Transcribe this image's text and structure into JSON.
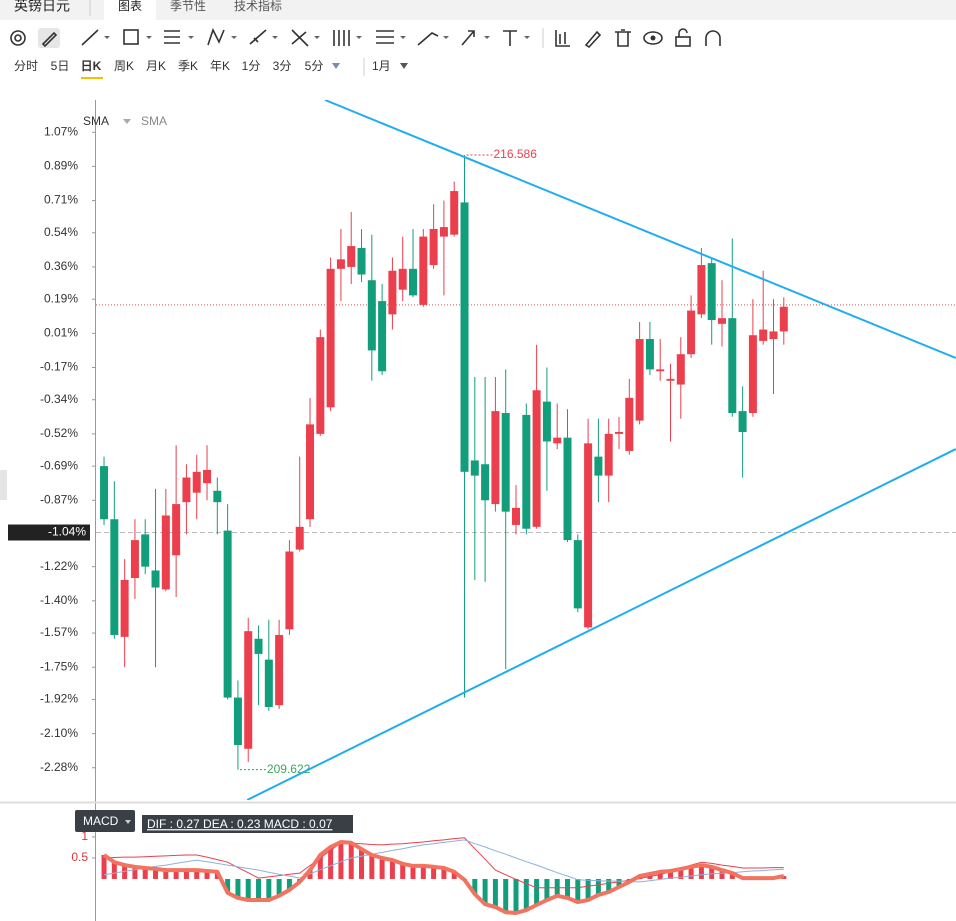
{
  "ui": {
    "symbol": "英镑日元",
    "tabs": [
      "图表",
      "季节性",
      "技术指标"
    ],
    "periods": [
      "分时",
      "5日",
      "日K",
      "周K",
      "月K",
      "季K",
      "年K",
      "1分",
      "3分",
      "5分"
    ],
    "range": "1月",
    "indicators": [
      "SMA",
      "SMA"
    ],
    "macd_button": "MACD",
    "macd_legend": "DIF : 0.27  DEA : 0.23  MACD : 0.07"
  },
  "chart_data": [
    {
      "type": "candlestick",
      "up_color": "#eb3f4d",
      "down_color": "#139e7b",
      "xlim": [
        -0.78,
        82.72
      ],
      "ylim": [
        -2.45,
        1.24
      ],
      "yticks": [
        {
          "value": 1.07,
          "label": "1.07%"
        },
        {
          "value": 0.89,
          "label": "0.89%"
        },
        {
          "value": 0.71,
          "label": "0.71%"
        },
        {
          "value": 0.54,
          "label": "0.54%"
        },
        {
          "value": 0.36,
          "label": "0.36%"
        },
        {
          "value": 0.19,
          "label": "0.19%"
        },
        {
          "value": 0.01,
          "label": "0.01%"
        },
        {
          "value": -0.17,
          "label": "-0.17%"
        },
        {
          "value": -0.34,
          "label": "-0.34%"
        },
        {
          "value": -0.52,
          "label": "-0.52%"
        },
        {
          "value": -0.69,
          "label": "-0.69%"
        },
        {
          "value": -0.87,
          "label": "-0.87%"
        },
        {
          "value": -1.22,
          "label": "-1.22%"
        },
        {
          "value": -1.4,
          "label": "-1.40%"
        },
        {
          "value": -1.57,
          "label": "-1.57%"
        },
        {
          "value": -1.75,
          "label": "-1.75%"
        },
        {
          "value": -1.92,
          "label": "-1.92%"
        },
        {
          "value": -2.1,
          "label": "-2.10%"
        },
        {
          "value": -2.28,
          "label": "-2.28%"
        }
      ],
      "crosshair": {
        "value": -1.04,
        "label": "-1.04%"
      },
      "last_price": 0.16,
      "last_price_color": "#d9534f",
      "high_label": "216.586",
      "low_label": "209.622",
      "trendline_color": "#1fadef",
      "trendlines": [
        [
          [
            21.46,
            1.24
          ],
          [
            82.7,
            -0.12
          ]
        ],
        [
          [
            13.9,
            -2.45
          ],
          [
            82.7,
            -0.6
          ]
        ]
      ],
      "open": [
        -0.69,
        -0.97,
        -1.59,
        -1.28,
        -1.05,
        -1.24,
        -1.34,
        -1.16,
        -0.88,
        -0.83,
        -0.78,
        -0.82,
        -1.03,
        -1.91,
        -2.18,
        -1.6,
        -1.71,
        -1.95,
        -1.55,
        -1.13,
        -0.97,
        -0.52,
        -0.38,
        0.35,
        0.36,
        0.46,
        0.29,
        0.18,
        0.11,
        0.24,
        0.35,
        0.16,
        0.37,
        0.52,
        0.53,
        0.7,
        -0.66,
        -0.68,
        -0.89,
        -0.41,
        -1.0,
        -0.42,
        -1.01,
        -0.35,
        -0.57,
        -0.54,
        -1.08,
        -1.54,
        -0.64,
        -0.74,
        -0.52,
        -0.61,
        -0.45,
        -0.02,
        -0.19,
        -0.24,
        -0.26,
        -0.1,
        0.11,
        0.38,
        0.06,
        0.09,
        -0.4,
        -0.41,
        -0.03,
        -0.02,
        0.02
      ],
      "high": [
        -0.64,
        -0.77,
        -1.18,
        -0.97,
        -0.97,
        -0.81,
        -0.81,
        -0.58,
        -0.68,
        -0.63,
        -0.58,
        -0.75,
        -0.89,
        -1.82,
        -1.49,
        -1.53,
        -1.5,
        -1.5,
        -1.08,
        -0.64,
        -0.33,
        0.03,
        0.41,
        0.56,
        0.65,
        0.56,
        0.53,
        0.27,
        0.41,
        0.52,
        0.56,
        0.56,
        0.69,
        0.71,
        0.81,
        0.95,
        -0.22,
        -0.22,
        -0.22,
        -0.18,
        -0.79,
        -0.36,
        -0.05,
        -0.17,
        -0.36,
        -0.39,
        -1.05,
        -0.44,
        -0.44,
        -0.44,
        -0.43,
        -0.23,
        0.07,
        0.07,
        -0.02,
        -0.15,
        -0.01,
        0.21,
        0.46,
        0.41,
        0.29,
        0.51,
        -0.27,
        0.19,
        0.34,
        0.19,
        0.2
      ],
      "low": [
        -1.0,
        -1.6,
        -1.75,
        -1.39,
        -1.26,
        -1.75,
        -1.35,
        -1.38,
        -1.05,
        -0.97,
        -0.87,
        -1.05,
        -1.92,
        -2.29,
        -2.25,
        -1.95,
        -1.98,
        -1.97,
        -1.58,
        -1.14,
        -1.01,
        -0.53,
        -0.4,
        0.18,
        0.27,
        0.28,
        -0.24,
        -0.21,
        0.03,
        0.18,
        0.2,
        0.15,
        0.35,
        0.21,
        0.52,
        -1.91,
        -1.29,
        -1.3,
        -0.93,
        -1.76,
        -1.05,
        -1.05,
        -1.02,
        -0.82,
        -0.6,
        -1.09,
        -1.46,
        -1.55,
        -0.88,
        -0.88,
        -0.6,
        -0.63,
        -0.47,
        -0.21,
        -0.24,
        -0.56,
        -0.44,
        -0.12,
        0.09,
        -0.05,
        -0.06,
        -0.43,
        -0.75,
        -0.43,
        -0.05,
        -0.31,
        -0.05
      ],
      "close": [
        -0.97,
        -1.58,
        -1.29,
        -1.08,
        -1.22,
        -1.33,
        -0.95,
        -0.89,
        -0.75,
        -0.72,
        -0.71,
        -0.88,
        -1.91,
        -2.16,
        -1.56,
        -1.68,
        -1.96,
        -1.58,
        -1.14,
        -1.01,
        -0.47,
        -0.01,
        0.35,
        0.4,
        0.47,
        0.32,
        -0.08,
        -0.19,
        0.34,
        0.35,
        0.21,
        0.52,
        0.56,
        0.57,
        0.76,
        -0.72,
        -0.74,
        -0.87,
        -0.4,
        -0.93,
        -0.91,
        -1.02,
        -0.29,
        -0.56,
        -0.54,
        -1.08,
        -1.44,
        -0.57,
        -0.74,
        -0.52,
        -0.51,
        -0.33,
        -0.02,
        -0.18,
        -0.18,
        -0.23,
        -0.1,
        0.13,
        0.37,
        0.08,
        0.09,
        -0.41,
        -0.51,
        0.0,
        0.03,
        0.02,
        0.15
      ]
    },
    {
      "type": "macd",
      "xlim": [
        -0.78,
        82.72
      ],
      "ylim": [
        -1.0,
        1.76
      ],
      "yticks": [
        0.5,
        1
      ],
      "up_color": "#eb3f4d",
      "down_color": "#139e7b",
      "emphasis_color": "#f2735f",
      "series": [
        {
          "color": "#e8414f",
          "values": [
            0.5,
            0.51,
            0.52,
            0.52,
            0.53,
            0.54,
            0.55,
            0.56,
            0.57,
            0.57,
            0.52,
            0.46,
            0.4,
            0.27,
            0.15,
            0.02,
            0.05,
            0.08,
            0.11,
            0.14,
            0.32,
            0.5,
            0.68,
            0.86,
            0.85,
            0.84,
            0.82,
            0.81,
            0.83,
            0.84,
            0.86,
            0.88,
            0.91,
            0.93,
            0.96,
            0.98,
            0.72,
            0.47,
            0.21,
            0.1,
            -0.01,
            -0.11,
            -0.21,
            -0.21,
            -0.21,
            -0.21,
            -0.21,
            -0.17,
            -0.14,
            -0.1,
            -0.07,
            -0.03,
            0.01,
            0.06,
            0.1,
            0.18,
            0.25,
            0.33,
            0.4,
            0.37,
            0.33,
            0.3,
            0.26,
            0.26,
            0.26,
            0.27,
            0.27
          ]
        },
        {
          "color": "#8fb2d9",
          "values": [
            0.1,
            0.14,
            0.18,
            0.22,
            0.26,
            0.3,
            0.33,
            0.37,
            0.41,
            0.45,
            0.41,
            0.37,
            0.33,
            0.29,
            0.25,
            0.21,
            0.16,
            0.11,
            0.07,
            0.02,
            0.12,
            0.22,
            0.31,
            0.41,
            0.5,
            0.54,
            0.59,
            0.63,
            0.68,
            0.72,
            0.77,
            0.81,
            0.84,
            0.87,
            0.9,
            0.93,
            0.84,
            0.76,
            0.67,
            0.59,
            0.5,
            0.41,
            0.33,
            0.24,
            0.15,
            0.07,
            -0.02,
            -0.03,
            -0.04,
            -0.05,
            -0.05,
            -0.06,
            -0.07,
            -0.04,
            -0.01,
            0.02,
            0.04,
            0.07,
            0.1,
            0.12,
            0.14,
            0.15,
            0.17,
            0.19,
            0.2,
            0.22,
            0.23
          ]
        },
        {
          "values": [
            0.57,
            0.4,
            0.33,
            0.29,
            0.26,
            0.24,
            0.21,
            0.21,
            0.21,
            0.21,
            0.19,
            0.17,
            -0.33,
            -0.45,
            -0.5,
            -0.5,
            -0.5,
            -0.4,
            -0.26,
            -0.07,
            0.21,
            0.57,
            0.76,
            0.88,
            0.86,
            0.71,
            0.57,
            0.5,
            0.45,
            0.36,
            0.31,
            0.31,
            0.29,
            0.26,
            0.17,
            -0.02,
            -0.36,
            -0.6,
            -0.67,
            -0.79,
            -0.81,
            -0.74,
            -0.62,
            -0.5,
            -0.4,
            -0.45,
            -0.55,
            -0.5,
            -0.38,
            -0.31,
            -0.19,
            -0.07,
            0.07,
            0.12,
            0.17,
            0.19,
            0.24,
            0.29,
            0.33,
            0.29,
            0.21,
            0.14,
            0.02,
            0.02,
            0.02,
            0.02,
            0.07
          ]
        }
      ]
    }
  ]
}
